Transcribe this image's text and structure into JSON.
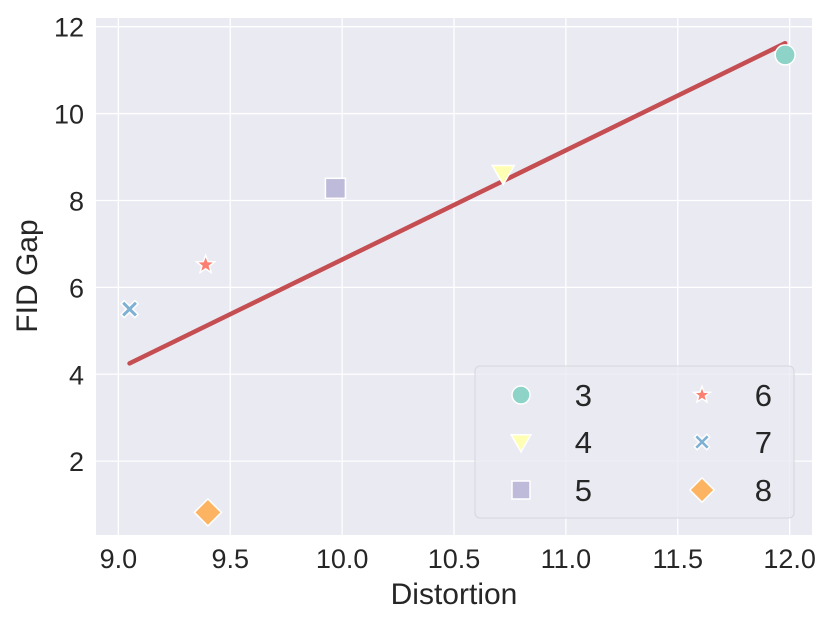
{
  "chart_data": {
    "type": "scatter",
    "xlabel": "Distortion",
    "ylabel": "FID Gap",
    "xlim": [
      8.9,
      12.1
    ],
    "ylim": [
      0.3,
      12.2
    ],
    "xticks": [
      "9.0",
      "9.5",
      "10.0",
      "10.5",
      "11.0",
      "11.5",
      "12.0"
    ],
    "yticks": [
      "2",
      "4",
      "6",
      "8",
      "10",
      "12"
    ],
    "grid": true,
    "legend_position": "lower-right",
    "legend_columns": 2,
    "series": [
      {
        "name": "3",
        "marker": "circle",
        "color": "#8dd3c7",
        "x": [
          11.98
        ],
        "y": [
          11.35
        ]
      },
      {
        "name": "4",
        "marker": "triangle-down",
        "color": "#ffffb3",
        "x": [
          10.72
        ],
        "y": [
          8.62
        ]
      },
      {
        "name": "5",
        "marker": "square",
        "color": "#bebada",
        "x": [
          9.97
        ],
        "y": [
          8.28
        ]
      },
      {
        "name": "6",
        "marker": "star",
        "color": "#fb8072",
        "x": [
          9.39
        ],
        "y": [
          6.52
        ]
      },
      {
        "name": "7",
        "marker": "x",
        "color": "#80b1d3",
        "x": [
          9.05
        ],
        "y": [
          5.5
        ]
      },
      {
        "name": "8",
        "marker": "diamond",
        "color": "#fdb462",
        "x": [
          9.4
        ],
        "y": [
          0.82
        ]
      }
    ],
    "fit_line": {
      "color": "#c44e52",
      "x": [
        9.05,
        11.98
      ],
      "y": [
        4.25,
        11.62
      ]
    },
    "colors": {
      "background": "#eaeaf2",
      "grid": "#ffffff",
      "text": "#262626"
    }
  }
}
